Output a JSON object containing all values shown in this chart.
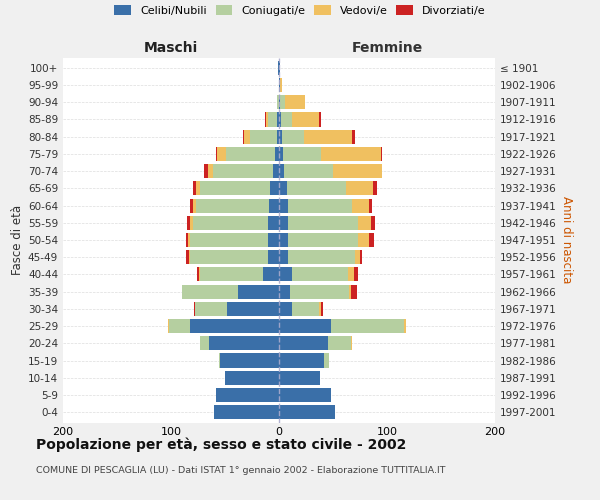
{
  "age_groups": [
    "0-4",
    "5-9",
    "10-14",
    "15-19",
    "20-24",
    "25-29",
    "30-34",
    "35-39",
    "40-44",
    "45-49",
    "50-54",
    "55-59",
    "60-64",
    "65-69",
    "70-74",
    "75-79",
    "80-84",
    "85-89",
    "90-94",
    "95-99",
    "100+"
  ],
  "birth_years": [
    "1997-2001",
    "1992-1996",
    "1987-1991",
    "1982-1986",
    "1977-1981",
    "1972-1976",
    "1967-1971",
    "1962-1966",
    "1957-1961",
    "1952-1956",
    "1947-1951",
    "1942-1946",
    "1937-1941",
    "1932-1936",
    "1927-1931",
    "1922-1926",
    "1917-1921",
    "1912-1916",
    "1907-1911",
    "1902-1906",
    "≤ 1901"
  ],
  "males": {
    "celibi": [
      60,
      58,
      50,
      55,
      65,
      82,
      48,
      38,
      15,
      10,
      10,
      10,
      9,
      8,
      6,
      4,
      2,
      2,
      0,
      0,
      1
    ],
    "coniugati": [
      0,
      0,
      0,
      1,
      8,
      20,
      30,
      52,
      58,
      72,
      72,
      70,
      68,
      65,
      55,
      45,
      25,
      8,
      2,
      0,
      0
    ],
    "vedovi": [
      0,
      0,
      0,
      0,
      0,
      1,
      0,
      0,
      1,
      1,
      2,
      2,
      3,
      4,
      5,
      8,
      5,
      2,
      0,
      0,
      0
    ],
    "divorziati": [
      0,
      0,
      0,
      0,
      0,
      0,
      1,
      0,
      2,
      3,
      2,
      3,
      2,
      3,
      3,
      1,
      1,
      1,
      0,
      0,
      0
    ]
  },
  "females": {
    "nubili": [
      52,
      48,
      38,
      42,
      45,
      48,
      12,
      10,
      12,
      8,
      8,
      8,
      8,
      7,
      5,
      4,
      3,
      2,
      1,
      1,
      1
    ],
    "coniugate": [
      0,
      0,
      0,
      4,
      22,
      68,
      25,
      55,
      52,
      62,
      65,
      65,
      60,
      55,
      45,
      35,
      20,
      10,
      5,
      0,
      0
    ],
    "vedove": [
      0,
      0,
      0,
      0,
      1,
      2,
      2,
      2,
      5,
      5,
      10,
      12,
      15,
      25,
      45,
      55,
      45,
      25,
      18,
      2,
      0
    ],
    "divorziate": [
      0,
      0,
      0,
      0,
      0,
      0,
      2,
      5,
      4,
      2,
      5,
      4,
      3,
      4,
      0,
      1,
      2,
      2,
      0,
      0,
      0
    ]
  },
  "colors": {
    "celibi": "#3a6fa8",
    "coniugati": "#b5cfa0",
    "vedovi": "#f0c060",
    "divorziati": "#cc2222"
  },
  "title": "Popolazione per età, sesso e stato civile - 2002",
  "subtitle": "COMUNE DI PESCAGLIA (LU) - Dati ISTAT 1° gennaio 2002 - Elaborazione TUTTITALIA.IT",
  "xlabel_left": "Maschi",
  "xlabel_right": "Femmine",
  "ylabel_left": "Fasce di età",
  "ylabel_right": "Anni di nascita",
  "xlim": 200,
  "background_color": "#f0f0f0",
  "plot_background": "#ffffff"
}
